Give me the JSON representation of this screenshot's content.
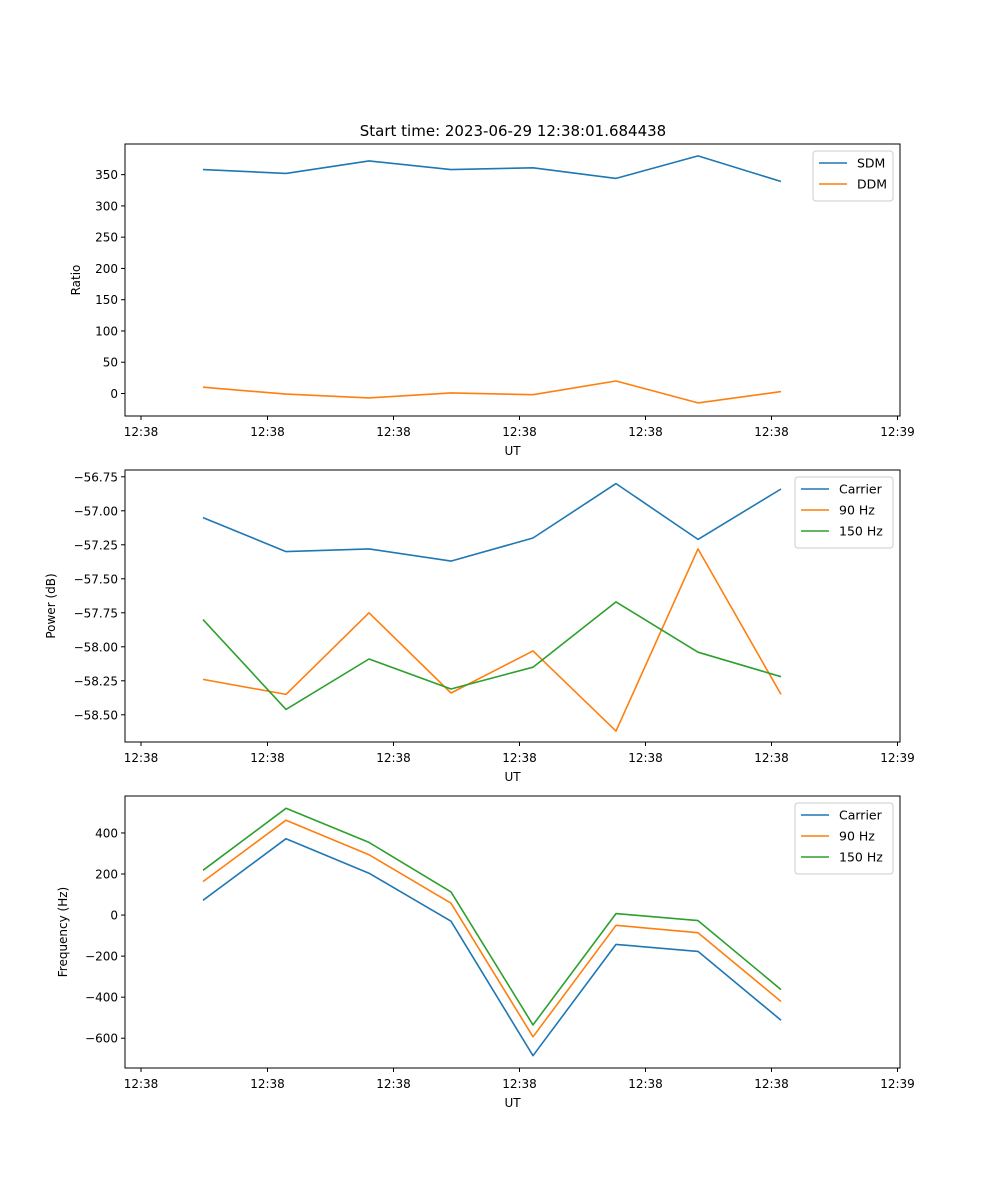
{
  "title": "Start time: 2023-06-29 12:38:01.684438",
  "chart_data": [
    {
      "type": "line",
      "xlabel": "UT",
      "ylabel": "Ratio",
      "x_tick_labels": [
        "12:38",
        "12:38",
        "12:38",
        "12:38",
        "12:38",
        "12:38",
        "12:38",
        "12:39"
      ],
      "y_ticks": [
        0,
        50,
        100,
        150,
        200,
        250,
        300,
        350
      ],
      "ylim": [
        -36,
        399
      ],
      "legend": "top-right",
      "series": [
        {
          "name": "SDM",
          "color": "#1f77b4",
          "values": [
            358,
            352,
            372,
            358,
            361,
            344,
            380,
            339
          ]
        },
        {
          "name": "DDM",
          "color": "#ff7f0e",
          "values": [
            10,
            -1,
            -7,
            1,
            -2,
            20,
            -15,
            3
          ]
        }
      ]
    },
    {
      "type": "line",
      "xlabel": "UT",
      "ylabel": "Power (dB)",
      "x_tick_labels": [
        "12:38",
        "12:38",
        "12:38",
        "12:38",
        "12:38",
        "12:38",
        "12:38",
        "12:39"
      ],
      "y_ticks": [
        -58.5,
        -58.25,
        -58.0,
        -57.75,
        -57.5,
        -57.25,
        -57.0,
        -56.75
      ],
      "y_tick_labels": [
        "−58.50",
        "−58.25",
        "−58.00",
        "−57.75",
        "−57.50",
        "−57.25",
        "−57.00",
        "−56.75"
      ],
      "ylim": [
        -58.7,
        -56.7
      ],
      "legend": "top-right",
      "series": [
        {
          "name": "Carrier",
          "color": "#1f77b4",
          "values": [
            -57.05,
            -57.3,
            -57.28,
            -57.37,
            -57.2,
            -56.8,
            -57.21,
            -56.84
          ]
        },
        {
          "name": "90 Hz",
          "color": "#ff7f0e",
          "values": [
            -58.24,
            -58.35,
            -57.75,
            -58.34,
            -58.03,
            -58.62,
            -57.28,
            -58.35
          ]
        },
        {
          "name": "150 Hz",
          "color": "#2ca02c",
          "values": [
            -57.8,
            -58.46,
            -58.09,
            -58.31,
            -58.15,
            -57.67,
            -58.04,
            -58.22
          ]
        }
      ]
    },
    {
      "type": "line",
      "xlabel": "UT",
      "ylabel": "Frequency (Hz)",
      "x_tick_labels": [
        "12:38",
        "12:38",
        "12:38",
        "12:38",
        "12:38",
        "12:38",
        "12:38",
        "12:39"
      ],
      "y_ticks": [
        -600,
        -400,
        -200,
        0,
        200,
        400
      ],
      "y_tick_labels": [
        "−600",
        "−400",
        "−200",
        "0",
        "200",
        "400"
      ],
      "ylim": [
        -745,
        580
      ],
      "legend": "top-right",
      "series": [
        {
          "name": "Carrier",
          "color": "#1f77b4",
          "values": [
            72,
            372,
            204,
            -30,
            -685,
            -143,
            -177,
            -512
          ]
        },
        {
          "name": "90 Hz",
          "color": "#ff7f0e",
          "values": [
            163,
            462,
            294,
            58,
            -593,
            -50,
            -86,
            -421
          ]
        },
        {
          "name": "150 Hz",
          "color": "#2ca02c",
          "values": [
            218,
            520,
            354,
            113,
            -535,
            7,
            -27,
            -363
          ]
        }
      ]
    }
  ]
}
